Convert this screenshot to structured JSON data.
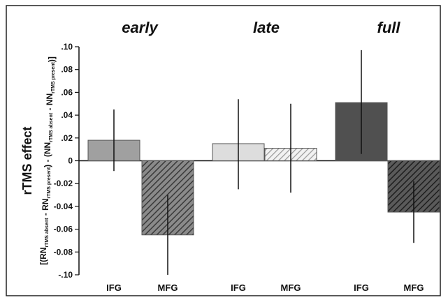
{
  "chart_data": {
    "type": "bar",
    "ylabel": "rTMS effect",
    "ylabel_formula": {
      "parts": [
        {
          "t": "[(RN"
        },
        {
          "t": "rTMS absent",
          "sub": true
        },
        {
          "t": " - RN"
        },
        {
          "t": "rTMS present",
          "sub": true
        },
        {
          "t": ") - (NN"
        },
        {
          "t": "rTMS absent",
          "sub": true
        },
        {
          "t": " - NN"
        },
        {
          "t": "rTMS present",
          "sub": true
        },
        {
          "t": ")]"
        }
      ]
    },
    "ylim": [
      -0.1,
      0.1
    ],
    "yticks": [
      0.1,
      0.08,
      0.06,
      0.04,
      0.02,
      0,
      -0.02,
      -0.04,
      -0.06,
      -0.08,
      -0.1
    ],
    "ytick_labels": [
      ".10",
      ".08",
      ".06",
      ".04",
      ".02",
      "0",
      "-0.02",
      "-0.04",
      "-0.06",
      "-0.08",
      "-.10"
    ],
    "grid": false,
    "panels": [
      {
        "title": "early",
        "bars": [
          {
            "label": "IFG",
            "value": 0.018,
            "err_low": -0.009,
            "err_high": 0.045,
            "fill": "#a0a0a0",
            "pattern": "solid"
          },
          {
            "label": "MFG",
            "value": -0.065,
            "err_low": -0.1,
            "err_high": -0.03,
            "fill": "#777777",
            "pattern": "hatch"
          }
        ]
      },
      {
        "title": "late",
        "bars": [
          {
            "label": "IFG",
            "value": 0.015,
            "err_low": -0.025,
            "err_high": 0.054,
            "fill": "#dddddd",
            "pattern": "solid"
          },
          {
            "label": "MFG",
            "value": 0.011,
            "err_low": -0.028,
            "err_high": 0.05,
            "fill": "#c8c8c8",
            "pattern": "hatch"
          }
        ]
      },
      {
        "title": "full",
        "bars": [
          {
            "label": "IFG",
            "value": 0.051,
            "err_low": 0.006,
            "err_high": 0.097,
            "fill": "#505050",
            "pattern": "solid"
          },
          {
            "label": "MFG",
            "value": -0.045,
            "err_low": -0.072,
            "err_high": -0.018,
            "fill": "#3c3c3c",
            "pattern": "hatch"
          }
        ]
      }
    ]
  }
}
